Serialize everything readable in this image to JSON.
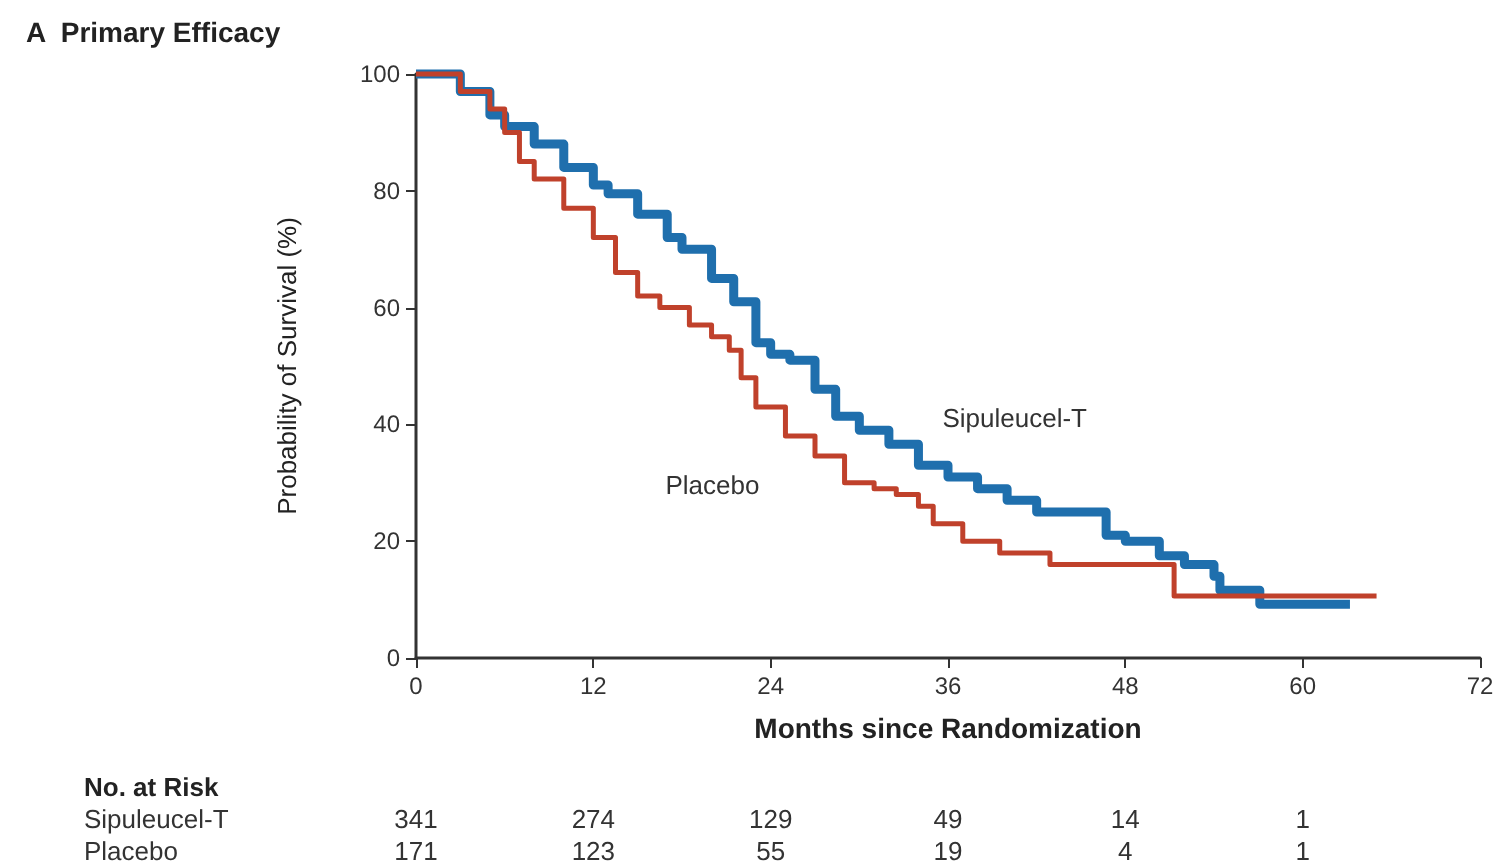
{
  "chart_data": {
    "type": "step",
    "title": "A  Primary Efficacy",
    "xlabel": "Months since Randomization",
    "ylabel": "Probability of Survival (%)",
    "xlim": [
      0,
      72
    ],
    "xticks": [
      0,
      12,
      24,
      36,
      48,
      60,
      72
    ],
    "ylim": [
      0,
      100
    ],
    "yticks": [
      0,
      20,
      40,
      60,
      80,
      100
    ],
    "grid": false,
    "legend": false,
    "marker": "none",
    "series": [
      {
        "name": "Sipuleucel-T",
        "color": "#1f6fad",
        "x": [
          0,
          1,
          3,
          5,
          6,
          8,
          10,
          12,
          13,
          15,
          17,
          18,
          20,
          21.5,
          23,
          24,
          25.3,
          27,
          28.4,
          30,
          32,
          34,
          36,
          38,
          40,
          42,
          45,
          46.7,
          48,
          50.3,
          52,
          54,
          54.4,
          57.1,
          63.2
        ],
        "values": [
          100,
          100,
          97,
          93,
          91,
          88,
          84,
          81,
          79.5,
          76,
          72,
          70,
          65,
          61,
          54,
          52,
          51,
          46,
          41.4,
          39,
          36.6,
          33,
          31,
          29,
          27,
          25,
          25,
          21,
          20,
          17.5,
          16,
          14,
          11.6,
          9.2,
          9.2
        ]
      },
      {
        "name": "Placebo",
        "color": "#c0412b",
        "x": [
          0,
          1,
          3,
          5,
          6,
          7,
          8,
          10,
          12,
          13.5,
          15,
          16.5,
          18.5,
          20,
          21.2,
          22,
          23,
          25,
          27,
          29,
          31,
          32.5,
          34,
          35,
          37,
          39.5,
          42.9,
          51.3,
          65
        ],
        "values": [
          100,
          100,
          97,
          94,
          90,
          85,
          82,
          77,
          72,
          66,
          62,
          60,
          57,
          55,
          52.7,
          48,
          43,
          38,
          34.6,
          30,
          29,
          28,
          26,
          23,
          20,
          18,
          16,
          10.6,
          10.6
        ]
      }
    ],
    "annotations": [
      "No. at Risk",
      "Sipuleucel-T 341 274 129 49 14 1",
      "Placebo 171 123 55 19 4 1"
    ]
  }
}
